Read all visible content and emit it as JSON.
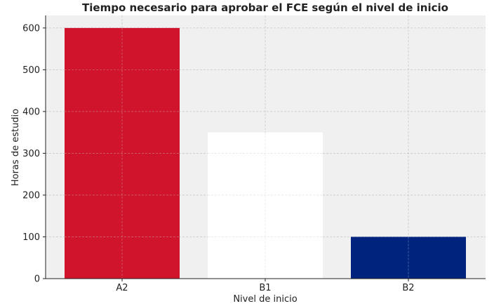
{
  "chart_data": {
    "type": "bar",
    "title": "Tiempo necesario para aprobar el FCE según el nivel de inicio",
    "xlabel": "Nivel de inicio",
    "ylabel": "Horas de estudio",
    "categories": [
      "A2",
      "B1",
      "B2"
    ],
    "values": [
      600,
      350,
      100
    ],
    "colors": [
      "#cf142b",
      "#ffffff",
      "#00247d"
    ],
    "ylim": [
      0,
      630
    ],
    "yticks": [
      0,
      100,
      200,
      300,
      400,
      500,
      600
    ],
    "grid": true,
    "plot_background": "#f0f0f0",
    "grid_color": "#c8c8c8"
  }
}
